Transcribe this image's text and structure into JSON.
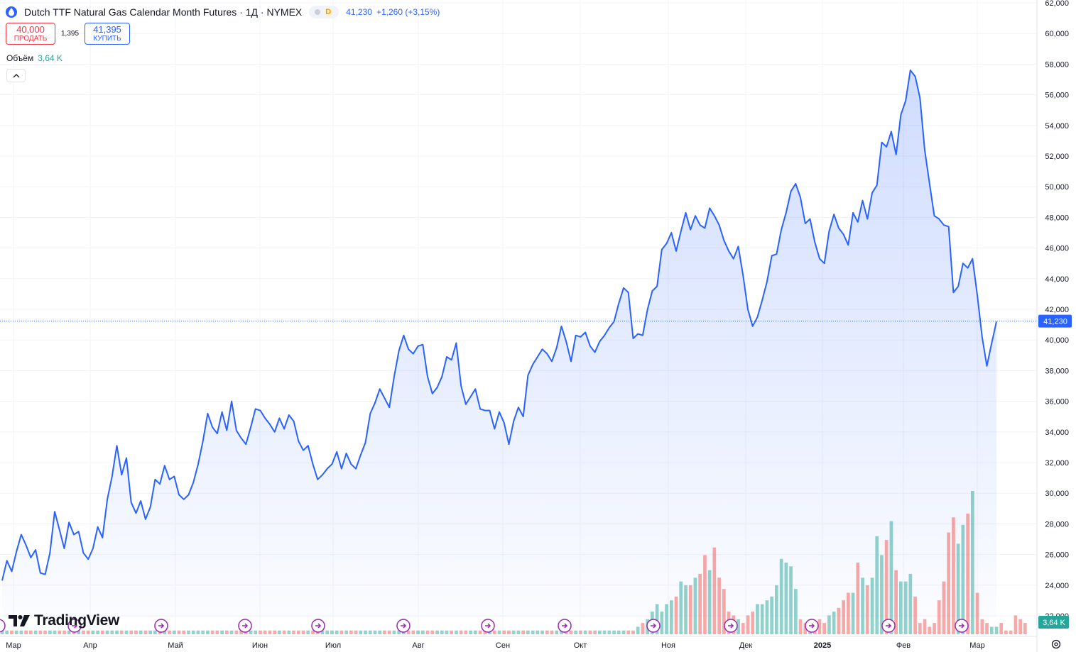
{
  "header": {
    "title": "Dutch TTF Natural Gas Calendar Month Futures · 1Д · NYMEX",
    "badge": "D",
    "last": "41,230",
    "change": "+1,260 (+3,15%)"
  },
  "trade": {
    "sell_price": "40,000",
    "sell_label": "ПРОДАТЬ",
    "spread": "1,395",
    "buy_price": "41,395",
    "buy_label": "КУПИТЬ"
  },
  "volume": {
    "label": "Объём",
    "value": "3,64 K"
  },
  "price_tag": "41,230",
  "volume_tag": "3,64 K",
  "brand": "TradingView",
  "colors": {
    "line": "#2962ff",
    "up": "#26a69a",
    "down": "#ef5350",
    "grid": "#f0f3fa"
  },
  "chart_data": {
    "type": "area",
    "x_axis_labels": [
      "Мар",
      "Апр",
      "Май",
      "Июн",
      "Июл",
      "Авг",
      "Сен",
      "Окт",
      "Ноя",
      "Дек",
      "2025",
      "Фев",
      "Мар"
    ],
    "y_axis_labels": [
      "22,000",
      "24,000",
      "26,000",
      "28,000",
      "30,000",
      "32,000",
      "34,000",
      "36,000",
      "38,000",
      "40,000",
      "42,000",
      "44,000",
      "46,000",
      "48,000",
      "50,000",
      "52,000",
      "54,000",
      "56,000",
      "58,000",
      "60,000",
      "62,000"
    ],
    "ylim": [
      22000,
      62000
    ],
    "last_value": 41230,
    "series": [
      {
        "values": [
          24.3,
          25.6,
          24.9,
          26.2,
          27.3,
          26.6,
          25.8,
          26.3,
          24.8,
          24.7,
          26.1,
          28.8,
          27.6,
          26.4,
          28.1,
          27.3,
          27.5,
          26.1,
          25.7,
          26.4,
          27.8,
          27.1,
          29.6,
          31.1,
          33.1,
          31.2,
          32.3,
          29.4,
          28.7,
          29.5,
          28.3,
          29.1,
          30.9,
          30.6,
          31.8,
          30.9,
          31.1,
          29.9,
          29.6,
          29.9,
          30.7,
          31.9,
          33.4,
          35.2,
          34.3,
          33.9,
          35.3,
          34.1,
          36.0,
          34.1,
          33.6,
          33.2,
          34.3,
          35.5,
          35.4,
          34.9,
          34.5,
          34.0,
          34.9,
          34.2,
          35.1,
          34.7,
          33.4,
          32.8,
          33.1,
          31.9,
          30.9,
          31.2,
          31.6,
          31.9,
          32.7,
          31.6,
          32.6,
          31.9,
          31.6,
          32.5,
          33.3,
          35.2,
          35.9,
          36.8,
          36.2,
          35.6,
          37.6,
          39.3,
          40.3,
          39.4,
          39.1,
          39.6,
          39.7,
          37.6,
          36.5,
          36.9,
          37.6,
          38.9,
          38.7,
          39.8,
          37.0,
          35.8,
          36.3,
          36.8,
          35.5,
          35.4,
          35.4,
          34.2,
          35.3,
          34.6,
          33.2,
          34.7,
          35.6,
          35.0,
          37.7,
          38.4,
          38.9,
          39.4,
          39.1,
          38.6,
          39.5,
          40.9,
          39.9,
          38.6,
          40.3,
          40.2,
          40.5,
          39.6,
          39.2,
          39.9,
          40.3,
          40.8,
          41.2,
          42.4,
          43.4,
          43.1,
          40.1,
          40.4,
          40.3,
          42.0,
          43.2,
          43.5,
          45.9,
          46.3,
          47.0,
          45.8,
          47.1,
          48.3,
          47.2,
          48.1,
          47.5,
          47.3,
          48.6,
          48.1,
          47.5,
          46.5,
          45.8,
          45.3,
          46.1,
          44.2,
          42.0,
          40.9,
          41.5,
          42.6,
          43.8,
          45.5,
          45.6,
          47.2,
          48.3,
          49.7,
          50.2,
          49.3,
          47.6,
          47.9,
          46.4,
          45.3,
          45.0,
          47.1,
          48.2,
          47.3,
          46.9,
          46.2,
          48.3,
          47.7,
          49.1,
          47.9,
          49.6,
          50.1,
          52.9,
          52.6,
          53.6,
          52.1,
          54.7,
          55.6,
          57.6,
          57.2,
          55.8,
          52.4,
          50.2,
          48.1,
          47.9,
          47.5,
          47.4,
          43.1,
          43.5,
          45.0,
          44.7,
          45.3,
          42.9,
          40.2,
          38.3,
          39.8,
          41.2
        ]
      },
      {
        "name": "Объём",
        "values": [
          1,
          1,
          1,
          1,
          1,
          1,
          1,
          1,
          1,
          1,
          1,
          1,
          1,
          1,
          1,
          1,
          1,
          1,
          1,
          1,
          1,
          1,
          1,
          1,
          1,
          1,
          1,
          1,
          1,
          1,
          1,
          1,
          1,
          1,
          1,
          1,
          1,
          1,
          1,
          1,
          1,
          1,
          1,
          1,
          1,
          1,
          1,
          1,
          1,
          1,
          1,
          1,
          1,
          1,
          1,
          1,
          1,
          1,
          1,
          1,
          1,
          1,
          1,
          1,
          1,
          1,
          1,
          1,
          1,
          1,
          1,
          1,
          1,
          1,
          1,
          1,
          1,
          1,
          1,
          1,
          1,
          1,
          1,
          1,
          1,
          1,
          1,
          1,
          1,
          1,
          1,
          1,
          1,
          1,
          1,
          1,
          1,
          1,
          1,
          1,
          1,
          1,
          1,
          1,
          1,
          1,
          1,
          1,
          1,
          1,
          1,
          1,
          1,
          1,
          1,
          1,
          1,
          1,
          1,
          1,
          1,
          1,
          1,
          1,
          1,
          1,
          1,
          1,
          1,
          1,
          1,
          1,
          1,
          2,
          3,
          4,
          6,
          8,
          6,
          8,
          9,
          10,
          14,
          13,
          13,
          15,
          16,
          21,
          17,
          23,
          15,
          12,
          6,
          5,
          4,
          3,
          5,
          6,
          8,
          8,
          9,
          10,
          13,
          20,
          19,
          18,
          12,
          4,
          3,
          2,
          3,
          4,
          3,
          5,
          6,
          7,
          9,
          11,
          11,
          19,
          15,
          13,
          15,
          26,
          21,
          25,
          30,
          17,
          14,
          14,
          16,
          10,
          3,
          4,
          2,
          3,
          9,
          14,
          27,
          31,
          24,
          29,
          32,
          38,
          11,
          4,
          3,
          2,
          2,
          3,
          1,
          1,
          5,
          4,
          3
        ]
      }
    ]
  }
}
